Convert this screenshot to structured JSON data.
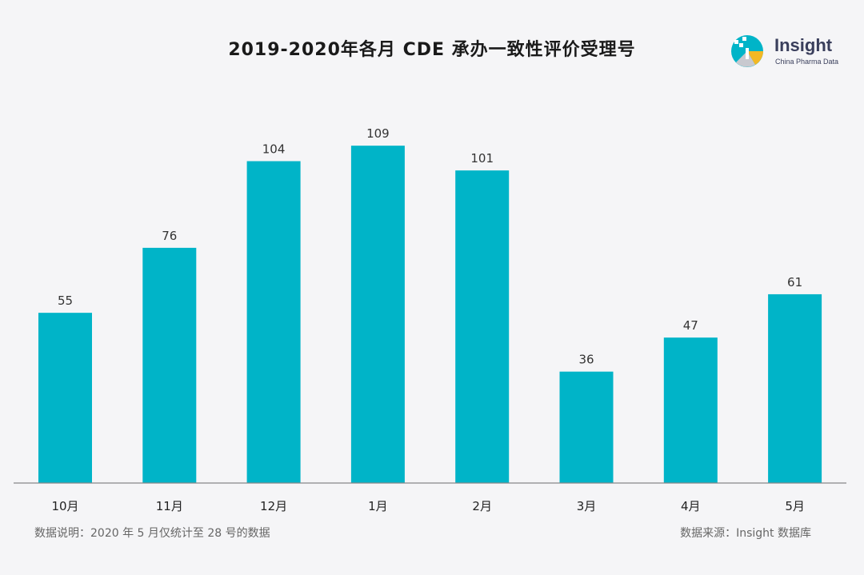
{
  "logo": {
    "name": "Insight",
    "tagline": "China Pharma Data"
  },
  "colors": {
    "bar": "#00b4c8",
    "axis": "#888888",
    "background": "#f5f5f7"
  },
  "chart_data": {
    "type": "bar",
    "title": "2019-2020年各月 CDE 承办一致性评价受理号",
    "xlabel": "",
    "ylabel": "",
    "categories": [
      "10月",
      "11月",
      "12月",
      "1月",
      "2月",
      "3月",
      "4月",
      "5月"
    ],
    "values": [
      55,
      76,
      104,
      109,
      101,
      36,
      47,
      61
    ],
    "ylim": [
      0,
      110
    ],
    "grid": false,
    "legend": "none"
  },
  "footnotes": {
    "left": "数据说明：2020 年 5 月仅统计至 28 号的数据",
    "right": "数据来源：Insight 数据库"
  }
}
